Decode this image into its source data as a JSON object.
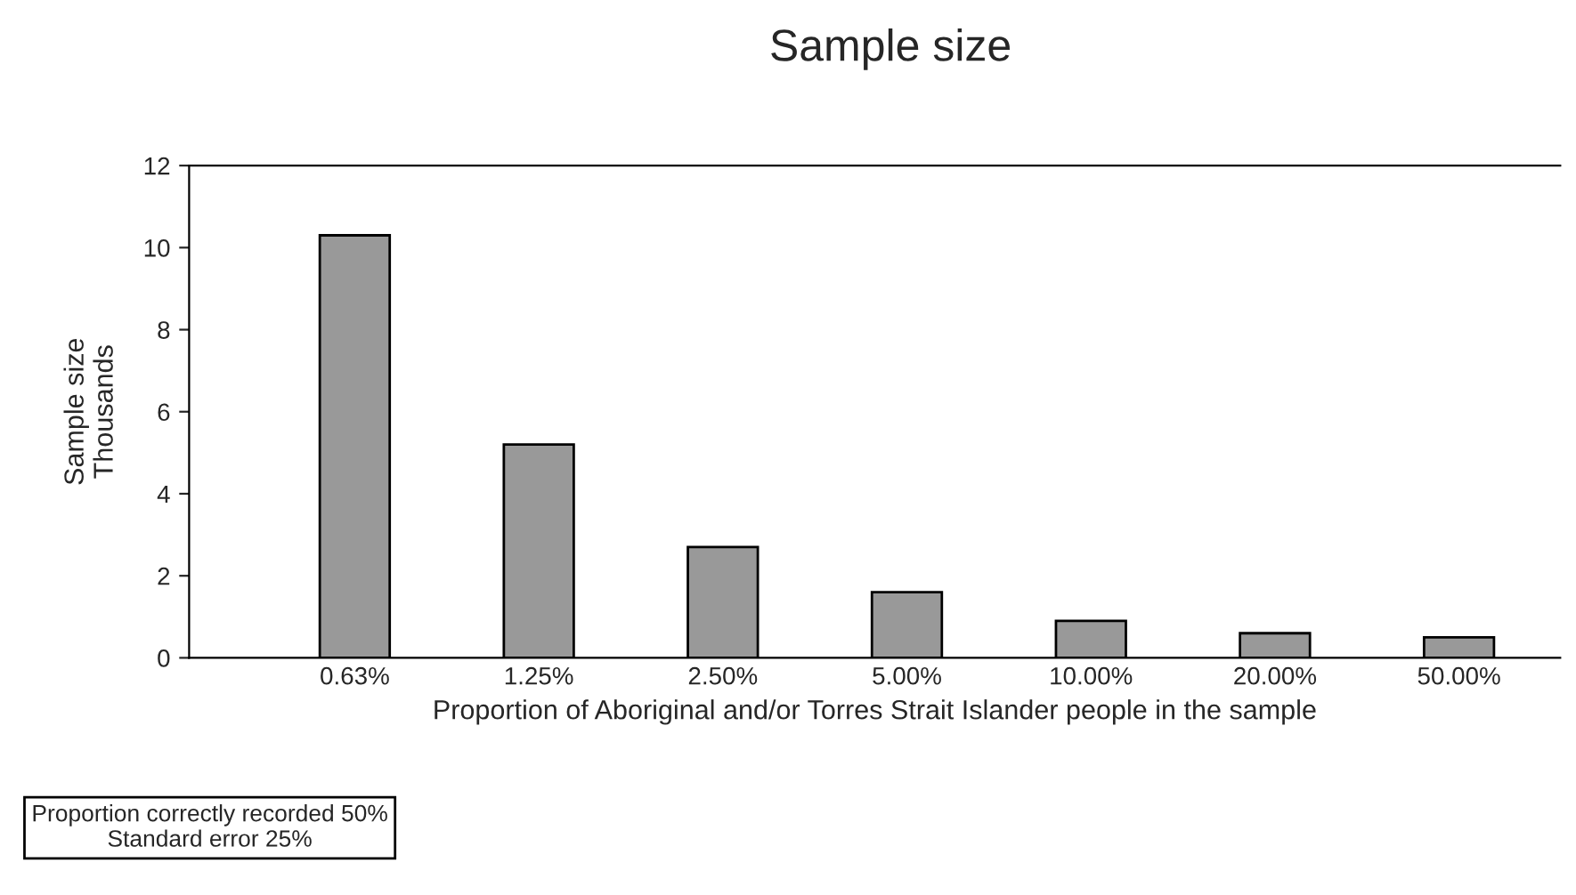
{
  "chart_data": {
    "type": "bar",
    "title": "Sample size",
    "ylabel": "Sample size\nThousands",
    "xlabel": "Proportion of Aboriginal and/or Torres Strait Islander people in the sample",
    "categories": [
      "0.63%",
      "1.25%",
      "2.50%",
      "5.00%",
      "10.00%",
      "20.00%",
      "50.00%"
    ],
    "values": [
      10.3,
      5.2,
      2.7,
      1.6,
      0.9,
      0.6,
      0.5
    ],
    "color": "#999999",
    "ylim": [
      0,
      12
    ],
    "yticks": [
      0,
      2,
      4,
      6,
      8,
      10,
      12
    ],
    "grid": false,
    "annotations": [
      "Proportion correctly recorded 50%\nStandard error 25%"
    ]
  }
}
